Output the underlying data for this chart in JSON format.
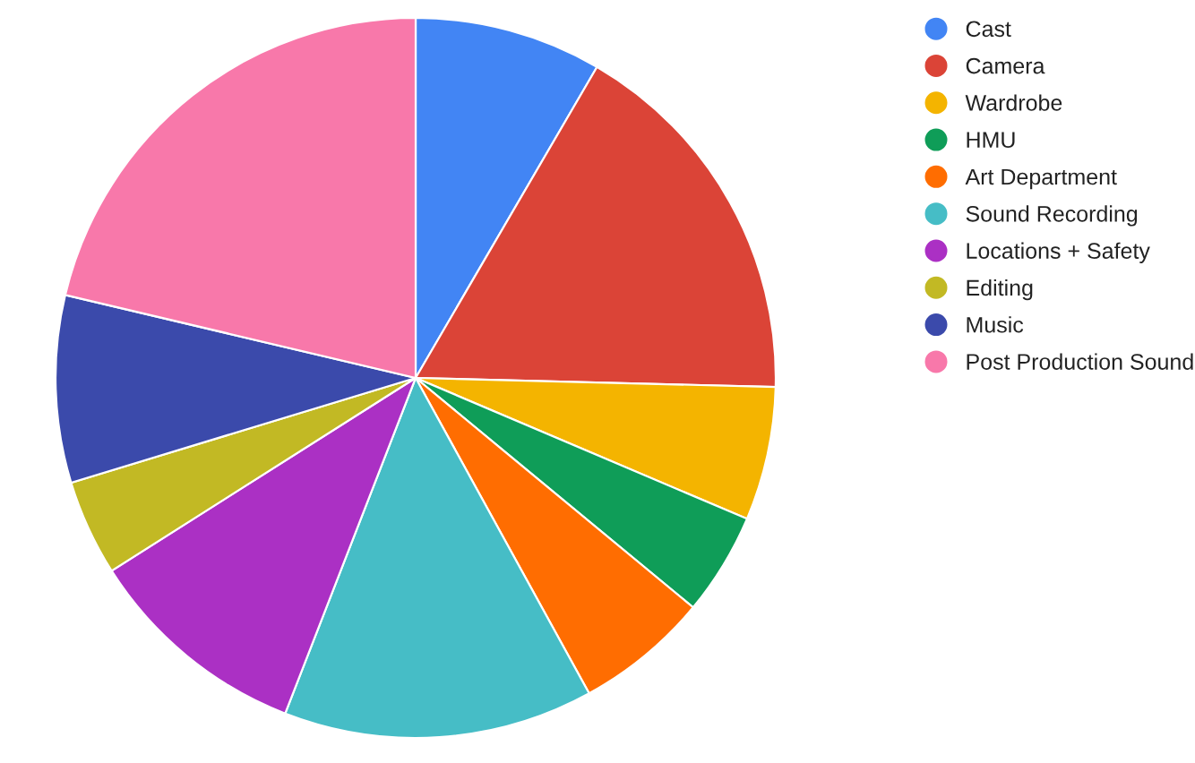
{
  "chart_data": {
    "type": "pie",
    "categories": [
      "Cast",
      "Camera",
      "Wardrobe",
      "HMU",
      "Art Department",
      "Sound Recording",
      "Locations + Safety",
      "Editing",
      "Music",
      "Post Production Sound"
    ],
    "values": [
      8.4,
      17.0,
      6.0,
      4.6,
      6.0,
      13.9,
      10.1,
      4.3,
      8.4,
      21.3
    ],
    "colors": [
      "#4285f4",
      "#db4437",
      "#f4b400",
      "#0f9d58",
      "#ff6d01",
      "#46bdc6",
      "#ab30c4",
      "#c2b924",
      "#3b4aab",
      "#f878aa"
    ],
    "legend": "right"
  }
}
